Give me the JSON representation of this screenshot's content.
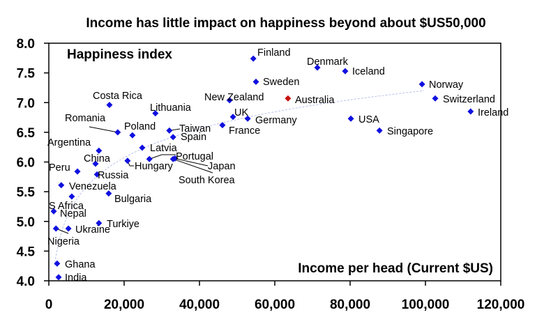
{
  "chart_data": {
    "type": "scatter",
    "title": "Income has little impact on happiness beyond about $US50,000",
    "ylabel": "Happiness index",
    "xlabel": "Income per head (Current $US)",
    "xlim": [
      0,
      120000
    ],
    "ylim": [
      4.0,
      8.0
    ],
    "xticks": [
      "0",
      "20,000",
      "40,000",
      "60,000",
      "80,000",
      "100,000",
      "120,000"
    ],
    "yticks": [
      "4.0",
      "4.5",
      "5.0",
      "5.5",
      "6.0",
      "6.5",
      "7.0",
      "7.5",
      "8.0"
    ],
    "grid": false,
    "colors": {
      "point": "#1010e0",
      "highlight": "#c81010",
      "trend": "#b8c0e8"
    },
    "trendline": {
      "type": "logarithmic",
      "a": -0.89,
      "b": 0.703
    },
    "points": [
      {
        "name": "Finland",
        "x": 54300,
        "y": 7.74
      },
      {
        "name": "Denmark",
        "x": 71300,
        "y": 7.59
      },
      {
        "name": "Iceland",
        "x": 78700,
        "y": 7.53
      },
      {
        "name": "Sweden",
        "x": 55000,
        "y": 7.35
      },
      {
        "name": "Norway",
        "x": 99100,
        "y": 7.31
      },
      {
        "name": "Australia",
        "x": 63500,
        "y": 7.07,
        "highlight": true
      },
      {
        "name": "New Zealand",
        "x": 48000,
        "y": 7.04
      },
      {
        "name": "Switzerland",
        "x": 102600,
        "y": 7.07
      },
      {
        "name": "Ireland",
        "x": 112000,
        "y": 6.85
      },
      {
        "name": "UK",
        "x": 48900,
        "y": 6.76
      },
      {
        "name": "Germany",
        "x": 52800,
        "y": 6.73
      },
      {
        "name": "USA",
        "x": 80200,
        "y": 6.73
      },
      {
        "name": "France",
        "x": 46100,
        "y": 6.62
      },
      {
        "name": "Singapore",
        "x": 87800,
        "y": 6.53
      },
      {
        "name": "Costa Rica",
        "x": 16100,
        "y": 6.96
      },
      {
        "name": "Lithuania",
        "x": 28300,
        "y": 6.82
      },
      {
        "name": "Romania",
        "x": 18300,
        "y": 6.5
      },
      {
        "name": "Poland",
        "x": 22200,
        "y": 6.45
      },
      {
        "name": "Taiwan",
        "x": 32000,
        "y": 6.53
      },
      {
        "name": "Spain",
        "x": 33000,
        "y": 6.42
      },
      {
        "name": "Argentina",
        "x": 13300,
        "y": 6.19
      },
      {
        "name": "Latvia",
        "x": 24800,
        "y": 6.24
      },
      {
        "name": "China",
        "x": 12400,
        "y": 5.97
      },
      {
        "name": "Hungary",
        "x": 20900,
        "y": 6.02
      },
      {
        "name": "Portugal",
        "x": 26700,
        "y": 6.05
      },
      {
        "name": "Japan",
        "x": 33500,
        "y": 6.06
      },
      {
        "name": "South Korea",
        "x": 33000,
        "y": 6.05
      },
      {
        "name": "Peru",
        "x": 7600,
        "y": 5.84
      },
      {
        "name": "Russia",
        "x": 12800,
        "y": 5.79
      },
      {
        "name": "Venezuela",
        "x": 3300,
        "y": 5.61
      },
      {
        "name": "Bulgaria",
        "x": 15900,
        "y": 5.47
      },
      {
        "name": "S Africa",
        "x": 6100,
        "y": 5.42
      },
      {
        "name": "Nepal",
        "x": 1300,
        "y": 5.17
      },
      {
        "name": "Turkiye",
        "x": 13300,
        "y": 4.97
      },
      {
        "name": "Ukraine",
        "x": 5200,
        "y": 4.88
      },
      {
        "name": "Nigeria",
        "x": 1900,
        "y": 4.88
      },
      {
        "name": "Ghana",
        "x": 2200,
        "y": 4.29
      },
      {
        "name": "India",
        "x": 2600,
        "y": 4.06
      }
    ]
  }
}
